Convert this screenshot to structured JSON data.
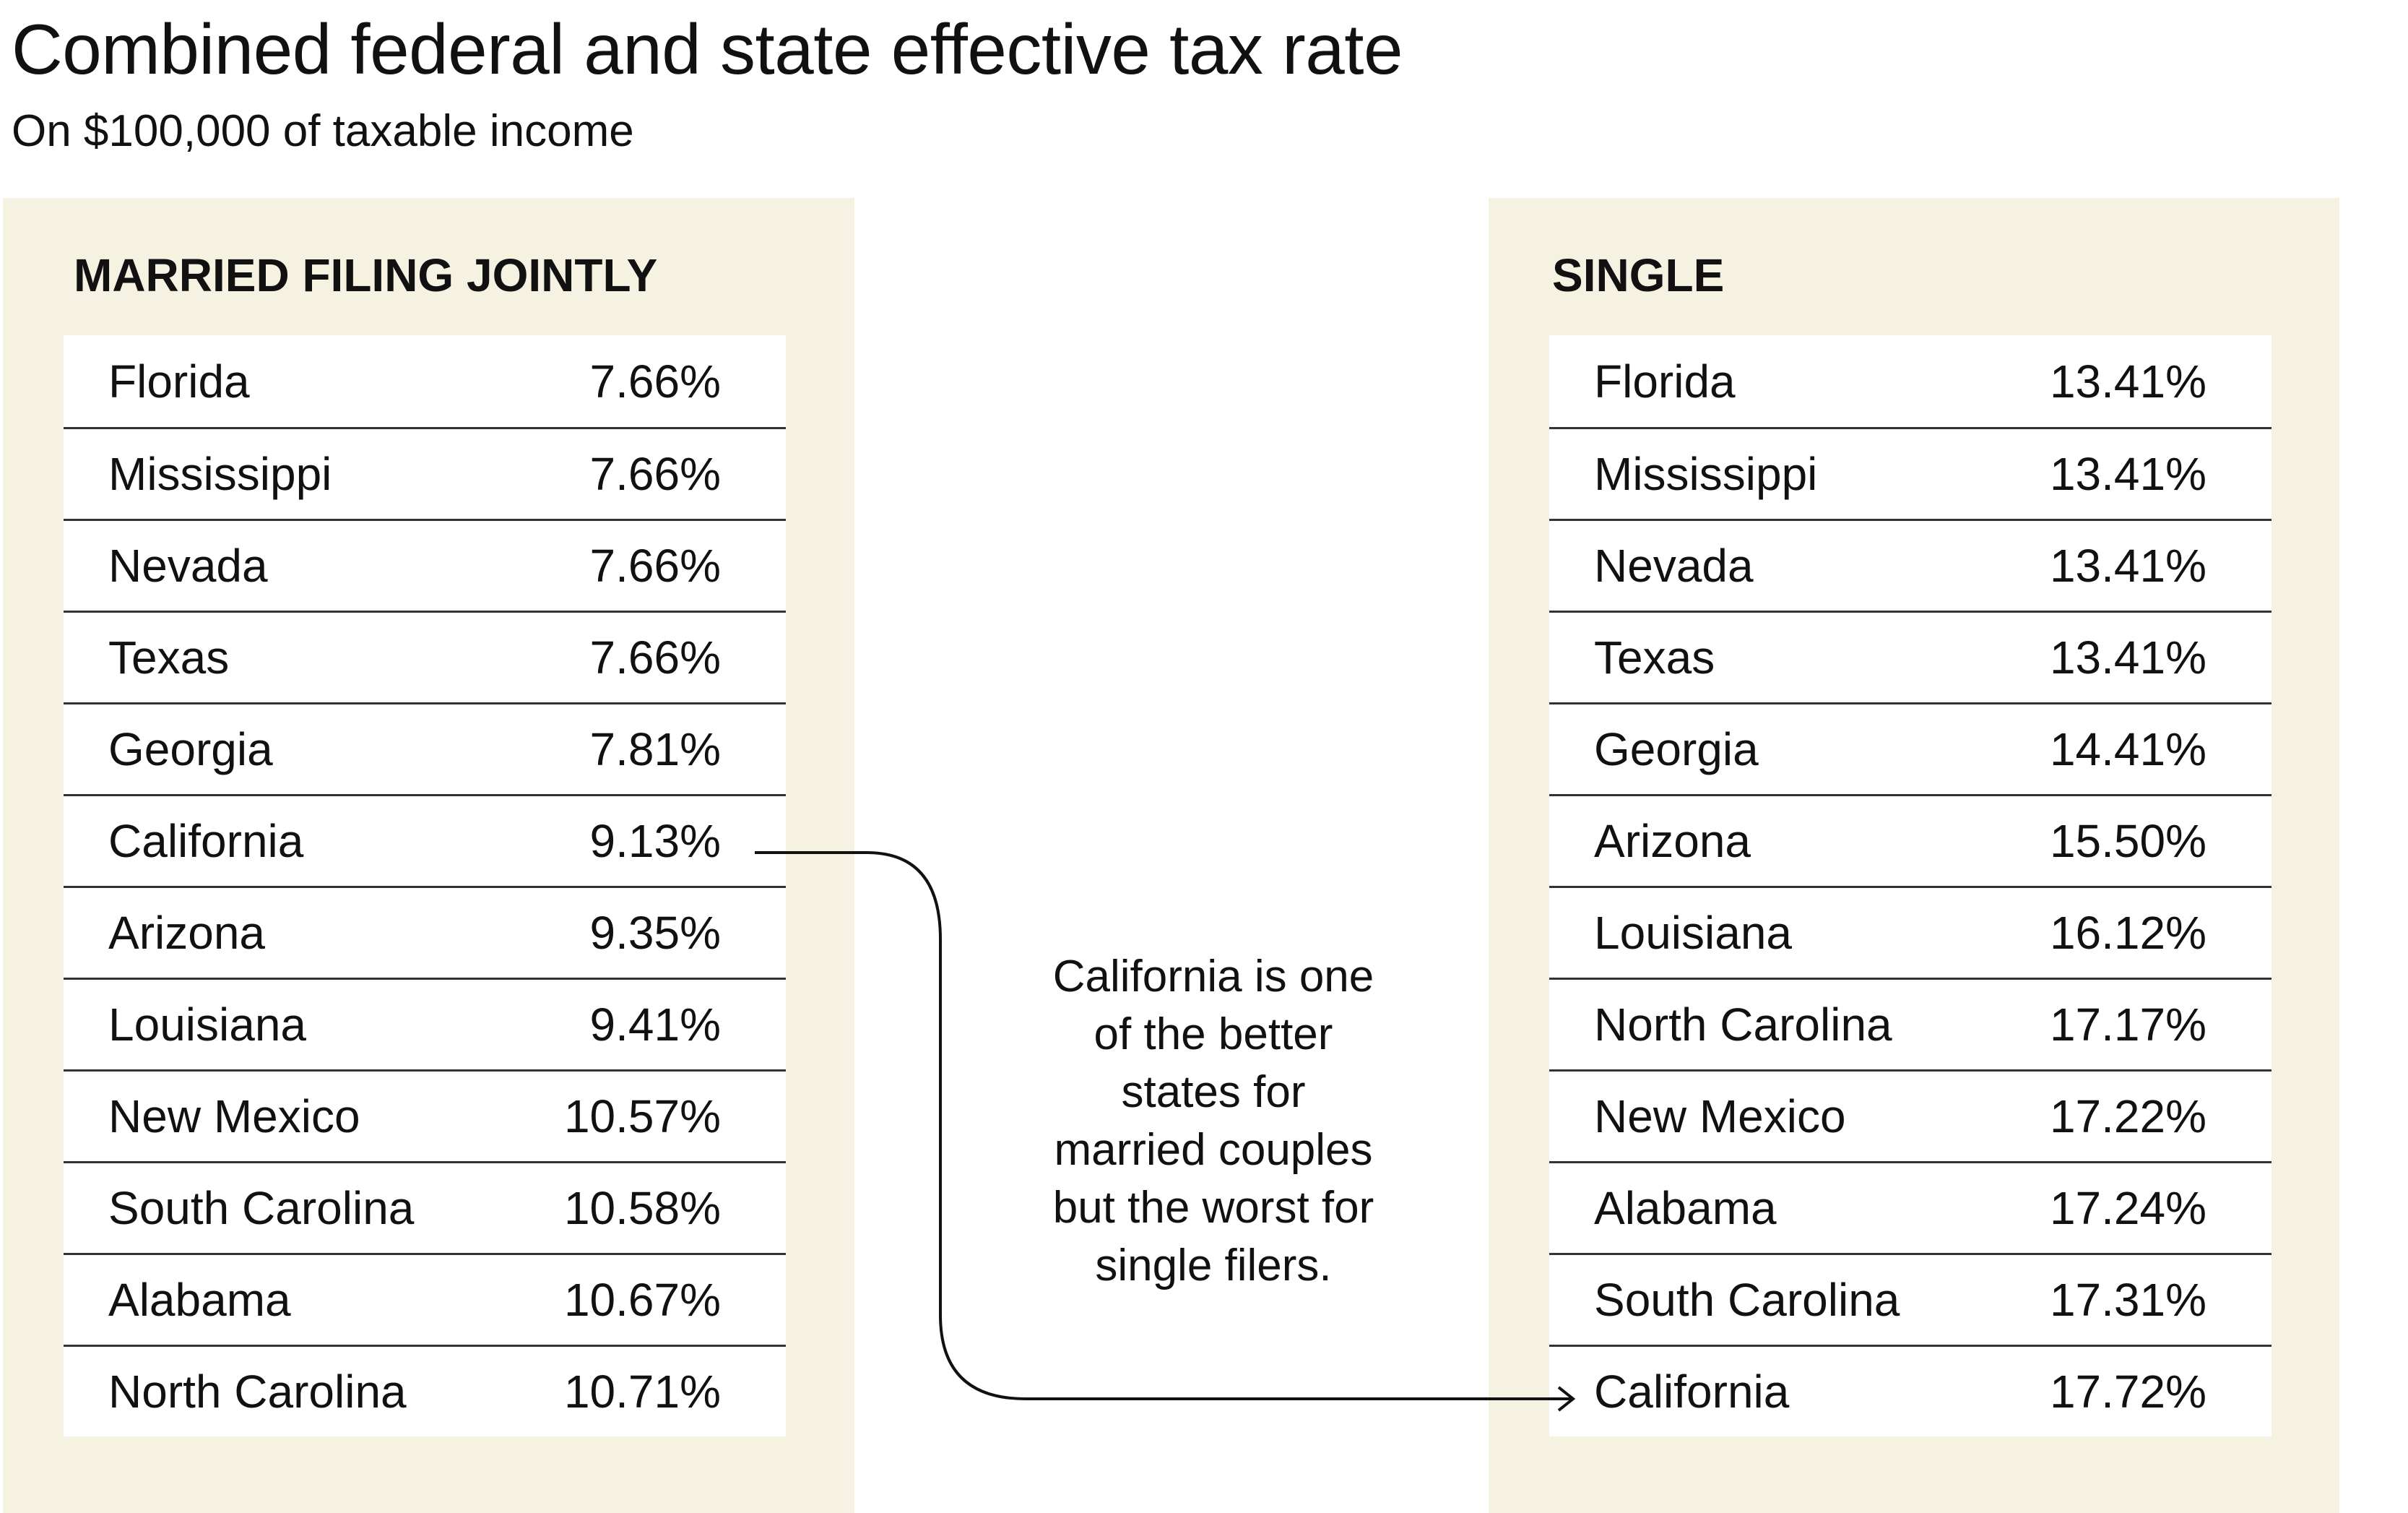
{
  "title": "Combined federal and state effective tax rate",
  "subtitle": "On $100,000 of taxable income",
  "colors": {
    "panel_bg": "#f5f2e1",
    "table_bg": "#ffffff",
    "rule": "#333333",
    "text": "#111111"
  },
  "married": {
    "heading": "MARRIED FILING JOINTLY",
    "rows": [
      {
        "state": "Florida",
        "rate": "7.66%"
      },
      {
        "state": "Mississippi",
        "rate": "7.66%"
      },
      {
        "state": "Nevada",
        "rate": "7.66%"
      },
      {
        "state": "Texas",
        "rate": "7.66%"
      },
      {
        "state": "Georgia",
        "rate": "7.81%"
      },
      {
        "state": "California",
        "rate": "9.13%"
      },
      {
        "state": "Arizona",
        "rate": "9.35%"
      },
      {
        "state": "Louisiana",
        "rate": "9.41%"
      },
      {
        "state": "New Mexico",
        "rate": "10.57%"
      },
      {
        "state": "South Carolina",
        "rate": "10.58%"
      },
      {
        "state": "Alabama",
        "rate": "10.67%"
      },
      {
        "state": "North Carolina",
        "rate": "10.71%"
      }
    ]
  },
  "single": {
    "heading": "SINGLE",
    "rows": [
      {
        "state": "Florida",
        "rate": "13.41%"
      },
      {
        "state": "Mississippi",
        "rate": "13.41%"
      },
      {
        "state": "Nevada",
        "rate": "13.41%"
      },
      {
        "state": "Texas",
        "rate": "13.41%"
      },
      {
        "state": "Georgia",
        "rate": "14.41%"
      },
      {
        "state": "Arizona",
        "rate": "15.50%"
      },
      {
        "state": "Louisiana",
        "rate": "16.12%"
      },
      {
        "state": "North Carolina",
        "rate": "17.17%"
      },
      {
        "state": "New Mexico",
        "rate": "17.22%"
      },
      {
        "state": "Alabama",
        "rate": "17.24%"
      },
      {
        "state": "South Carolina",
        "rate": "17.31%"
      },
      {
        "state": "California",
        "rate": "17.72%"
      }
    ]
  },
  "annotation": {
    "lines": [
      "California is one",
      "of the better",
      "states for",
      "married couples",
      "but the worst for",
      "single filers."
    ],
    "connector_icon": "arrow-right-icon"
  }
}
